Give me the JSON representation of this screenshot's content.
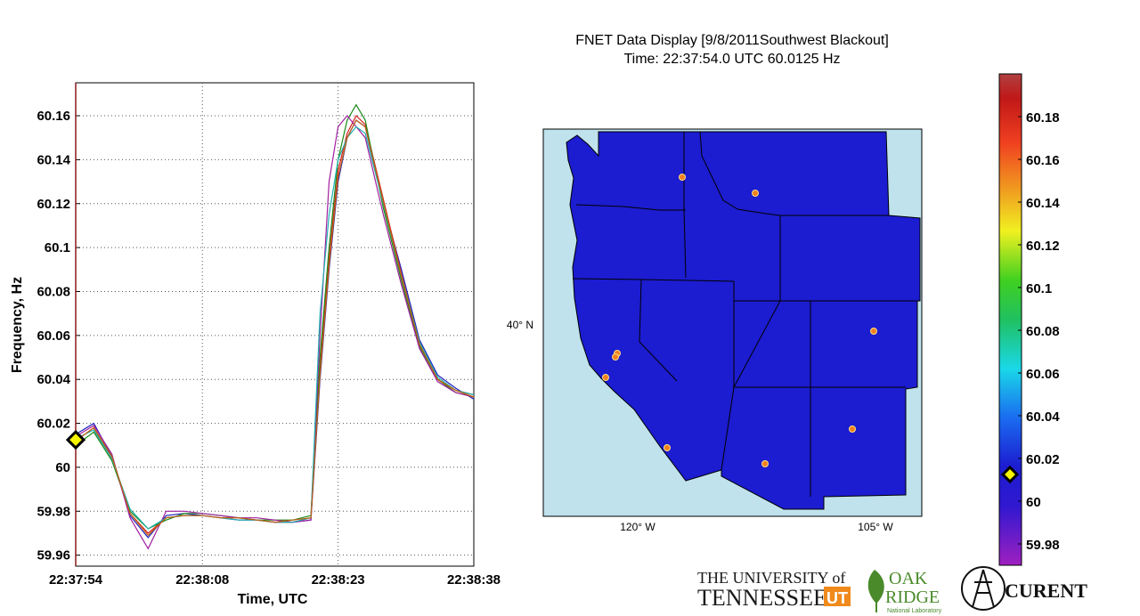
{
  "title_line1": "FNET Data Display [9/8/2011Southwest Blackout]",
  "title_line2": "Time: 22:37:54.0 UTC   60.0125 Hz",
  "chart_data": [
    {
      "type": "line",
      "xlabel": "Time, UTC",
      "ylabel": "Frequency, Hz",
      "x_tick_labels": [
        "22:37:54",
        "22:38:08",
        "22:38:23",
        "22:38:38"
      ],
      "x_ticks_seconds": [
        0,
        14,
        29,
        44
      ],
      "xlim_seconds": [
        0,
        44
      ],
      "y_ticks": [
        59.96,
        59.98,
        60,
        60.02,
        60.04,
        60.06,
        60.08,
        60.1,
        60.12,
        60.14,
        60.16
      ],
      "y_tick_labels": [
        "59.96",
        "59.98",
        "60",
        "60.02",
        "60.04",
        "60.06",
        "60.08",
        "60.1",
        "60.12",
        "60.14",
        "60.16"
      ],
      "ylim": [
        59.955,
        60.175
      ],
      "grid": true,
      "cursor": {
        "time_seconds": 0,
        "value": 60.0125
      },
      "series": [
        {
          "color": "#1f1fbf",
          "x": [
            0,
            2,
            4,
            6,
            8,
            10,
            12,
            14,
            16,
            18,
            20,
            22,
            24,
            26,
            27,
            28,
            29,
            30,
            31,
            32,
            34,
            36,
            38,
            40,
            42,
            44
          ],
          "y": [
            60.015,
            60.02,
            60.005,
            59.978,
            59.968,
            59.978,
            59.979,
            59.978,
            59.977,
            59.976,
            59.976,
            59.975,
            59.975,
            59.976,
            60.04,
            60.09,
            60.13,
            60.15,
            60.158,
            60.155,
            60.12,
            60.09,
            60.058,
            60.042,
            60.036,
            60.031
          ]
        },
        {
          "color": "#d42020",
          "x": [
            0,
            2,
            4,
            6,
            8,
            10,
            12,
            14,
            16,
            18,
            20,
            22,
            24,
            26,
            27,
            28,
            29,
            30,
            31,
            32,
            34,
            36,
            38,
            40,
            42,
            44
          ],
          "y": [
            60.012,
            60.018,
            60.004,
            59.979,
            59.97,
            59.977,
            59.978,
            59.978,
            59.977,
            59.977,
            59.976,
            59.975,
            59.975,
            59.977,
            60.045,
            60.095,
            60.135,
            60.152,
            60.16,
            60.156,
            60.122,
            60.088,
            60.056,
            60.04,
            60.035,
            60.033
          ]
        },
        {
          "color": "#1a8a1a",
          "x": [
            0,
            2,
            4,
            6,
            8,
            10,
            12,
            14,
            16,
            18,
            20,
            22,
            24,
            26,
            27,
            28,
            29,
            30,
            31,
            32,
            34,
            36,
            38,
            40,
            42,
            44
          ],
          "y": [
            60.01,
            60.016,
            60.003,
            59.98,
            59.972,
            59.976,
            59.979,
            59.979,
            59.978,
            59.977,
            59.976,
            59.976,
            59.976,
            59.978,
            60.05,
            60.1,
            60.14,
            60.158,
            60.165,
            60.158,
            60.118,
            60.085,
            60.055,
            60.04,
            60.034,
            60.032
          ]
        },
        {
          "color": "#a020a0",
          "x": [
            0,
            2,
            4,
            6,
            8,
            10,
            12,
            14,
            16,
            18,
            20,
            22,
            24,
            26,
            27,
            28,
            29,
            30,
            31,
            32,
            34,
            36,
            38,
            40,
            42,
            44
          ],
          "y": [
            60.014,
            60.019,
            60.006,
            59.977,
            59.963,
            59.98,
            59.98,
            59.979,
            59.978,
            59.977,
            59.977,
            59.976,
            59.975,
            59.976,
            60.06,
            60.13,
            60.155,
            60.16,
            60.155,
            60.15,
            60.115,
            60.083,
            60.054,
            60.039,
            60.034,
            60.032
          ]
        },
        {
          "color": "#20b0b0",
          "x": [
            0,
            2,
            4,
            6,
            8,
            10,
            12,
            14,
            16,
            18,
            20,
            22,
            24,
            26,
            27,
            28,
            29,
            30,
            31,
            32,
            34,
            36,
            38,
            40,
            42,
            44
          ],
          "y": [
            60.013,
            60.017,
            60.004,
            59.981,
            59.972,
            59.977,
            59.978,
            59.978,
            59.977,
            59.976,
            59.976,
            59.975,
            59.975,
            59.977,
            60.07,
            60.115,
            60.14,
            60.15,
            60.155,
            60.152,
            60.12,
            60.087,
            60.057,
            60.041,
            60.035,
            60.033
          ]
        },
        {
          "color": "#c06010",
          "x": [
            0,
            2,
            4,
            6,
            8,
            10,
            12,
            14,
            16,
            18,
            20,
            22,
            24,
            26,
            27,
            28,
            29,
            30,
            31,
            32,
            34,
            36,
            38,
            40,
            42,
            44
          ],
          "y": [
            60.012,
            60.018,
            60.005,
            59.979,
            59.969,
            59.977,
            59.978,
            59.978,
            59.977,
            59.977,
            59.976,
            59.975,
            59.976,
            59.977,
            60.042,
            60.092,
            60.132,
            60.15,
            60.158,
            60.155,
            60.121,
            60.087,
            60.056,
            60.04,
            60.035,
            60.032
          ]
        }
      ]
    },
    {
      "type": "heatmap",
      "map_x_ticks": [
        "120° W",
        "105° W"
      ],
      "map_y_ticks": [
        "40° N"
      ],
      "map_fill_color": "#1c1cd0",
      "water_color": "#bfe2ec",
      "colorbar_ticks": [
        59.98,
        60,
        60.02,
        60.04,
        60.06,
        60.08,
        60.1,
        60.12,
        60.14,
        60.16,
        60.18
      ],
      "colorbar_tick_labels": [
        "59.98",
        "60",
        "60.02",
        "60.04",
        "60.06",
        "60.08",
        "60.1",
        "60.12",
        "60.14",
        "60.16",
        "60.18"
      ],
      "colorbar_range": [
        59.97,
        60.2
      ],
      "colorbar_marker_value": 60.0125
    }
  ],
  "logos": {
    "utk_line1": "THE UNIVERSITY of",
    "utk_line2": "TENNESSEE",
    "ornl_line1": "OAK",
    "ornl_line2": "RIDGE",
    "ornl_line3": "National Laboratory",
    "curent": "CURENT"
  },
  "colors": {
    "map_fill": "#1c1cd0",
    "water": "#bfe2ec",
    "marker": "#f5f500",
    "utk_orange": "#f08a1c",
    "ornl_green": "#4a8a2a"
  }
}
